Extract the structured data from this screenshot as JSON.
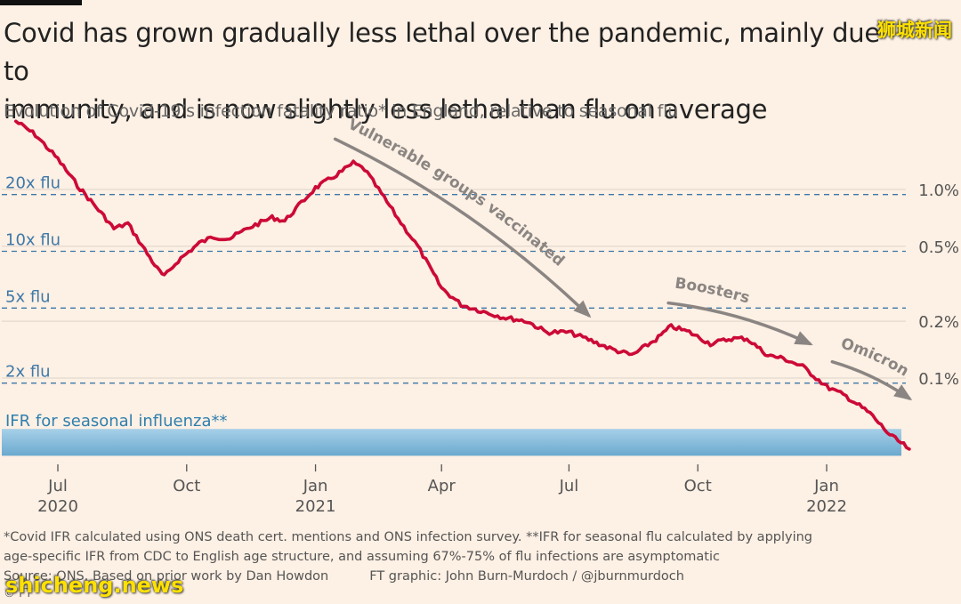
{
  "header": {
    "title_line1": "Covid has grown gradually less lethal over the pandemic, mainly due to",
    "title_line2": "immunity, and is now slightly less lethal than flu on average",
    "subtitle": "Evolution of Covid-19’s infection fatality ratio* in England, relative to seasonal flu"
  },
  "footer": {
    "note_line1": "*Covid IFR calculated using ONS death cert. mentions and ONS infection survey.  **IFR for seasonal flu calculated by applying",
    "note_line2": "age-specific IFR from CDC to English age structure, and assuming 67%-75% of flu infections are asymptomatic",
    "source": "Source: ONS. Based on prior work by Dan Howdon",
    "credit": "FT graphic: John Burn-Murdoch / @jburnmurdoch",
    "logo": "© FT"
  },
  "watermarks": {
    "top": "狮城新闻",
    "bottom": "shicheng.news"
  },
  "colors": {
    "background": "#fdf0e4",
    "line": "#cc0a37",
    "flu_band": "#7fb7d8",
    "flu_label": "#2f7fae",
    "reference": "#3d78a8",
    "arrow": "#8a8582",
    "grid": "#ddd3c9"
  },
  "chart_data": {
    "type": "line",
    "title": "Covid has grown gradually less lethal over the pandemic, mainly due to immunity, and is now slightly less lethal than flu on average",
    "subtitle": "Evolution of Covid-19’s infection fatality ratio* in England, relative to seasonal flu",
    "x_axis": {
      "range": [
        "2020-06-01",
        "2022-03-05"
      ],
      "ticks": [
        {
          "date": "2020-07-01",
          "month": "Jul",
          "year": "2020"
        },
        {
          "date": "2020-10-01",
          "month": "Oct",
          "year": ""
        },
        {
          "date": "2021-01-01",
          "month": "Jan",
          "year": "2021"
        },
        {
          "date": "2021-04-01",
          "month": "Apr",
          "year": ""
        },
        {
          "date": "2021-07-01",
          "month": "Jul",
          "year": ""
        },
        {
          "date": "2021-10-01",
          "month": "Oct",
          "year": ""
        },
        {
          "date": "2022-01-01",
          "month": "Jan",
          "year": "2022"
        }
      ]
    },
    "y_axis": {
      "scale": "log",
      "unit": "%",
      "range": [
        0.02,
        2.4
      ],
      "ticks": [
        {
          "value": 1.0,
          "label": "1.0%"
        },
        {
          "value": 0.5,
          "label": "0.5%"
        },
        {
          "value": 0.2,
          "label": "0.2%"
        },
        {
          "value": 0.1,
          "label": "0.1%"
        }
      ]
    },
    "flu_ifr": 0.047,
    "flu_band": [
      0.04,
      0.052
    ],
    "flu_band_label": "IFR for seasonal influenza**",
    "reference_lines": [
      {
        "multiple": 20,
        "label": "20x flu",
        "value": 0.94
      },
      {
        "multiple": 10,
        "label": "10x flu",
        "value": 0.47
      },
      {
        "multiple": 5,
        "label": "5x flu",
        "value": 0.235
      },
      {
        "multiple": 2,
        "label": "2x flu",
        "value": 0.094
      }
    ],
    "series": [
      {
        "name": "Covid-19 infection fatality ratio (England)",
        "points": [
          {
            "date": "2020-06-01",
            "ifr": 2.3
          },
          {
            "date": "2020-06-15",
            "ifr": 1.95
          },
          {
            "date": "2020-07-01",
            "ifr": 1.45
          },
          {
            "date": "2020-07-15",
            "ifr": 1.05
          },
          {
            "date": "2020-08-01",
            "ifr": 0.75
          },
          {
            "date": "2020-08-10",
            "ifr": 0.62
          },
          {
            "date": "2020-08-20",
            "ifr": 0.66
          },
          {
            "date": "2020-09-01",
            "ifr": 0.48
          },
          {
            "date": "2020-09-10",
            "ifr": 0.38
          },
          {
            "date": "2020-09-15",
            "ifr": 0.345
          },
          {
            "date": "2020-09-25",
            "ifr": 0.42
          },
          {
            "date": "2020-10-10",
            "ifr": 0.52
          },
          {
            "date": "2020-10-20",
            "ifr": 0.56
          },
          {
            "date": "2020-11-01",
            "ifr": 0.55
          },
          {
            "date": "2020-11-15",
            "ifr": 0.63
          },
          {
            "date": "2020-12-01",
            "ifr": 0.71
          },
          {
            "date": "2020-12-10",
            "ifr": 0.68
          },
          {
            "date": "2020-12-20",
            "ifr": 0.82
          },
          {
            "date": "2021-01-01",
            "ifr": 1.02
          },
          {
            "date": "2021-01-10",
            "ifr": 1.12
          },
          {
            "date": "2021-01-20",
            "ifr": 1.25
          },
          {
            "date": "2021-01-28",
            "ifr": 1.38
          },
          {
            "date": "2021-02-05",
            "ifr": 1.28
          },
          {
            "date": "2021-02-15",
            "ifr": 1.0
          },
          {
            "date": "2021-03-01",
            "ifr": 0.7
          },
          {
            "date": "2021-03-15",
            "ifr": 0.5
          },
          {
            "date": "2021-04-01",
            "ifr": 0.3
          },
          {
            "date": "2021-04-15",
            "ifr": 0.245
          },
          {
            "date": "2021-05-01",
            "ifr": 0.225
          },
          {
            "date": "2021-05-15",
            "ifr": 0.21
          },
          {
            "date": "2021-06-01",
            "ifr": 0.2
          },
          {
            "date": "2021-06-15",
            "ifr": 0.175
          },
          {
            "date": "2021-07-01",
            "ifr": 0.175
          },
          {
            "date": "2021-07-15",
            "ifr": 0.16
          },
          {
            "date": "2021-08-01",
            "ifr": 0.142
          },
          {
            "date": "2021-08-15",
            "ifr": 0.132
          },
          {
            "date": "2021-09-01",
            "ifr": 0.16
          },
          {
            "date": "2021-09-12",
            "ifr": 0.188
          },
          {
            "date": "2021-09-25",
            "ifr": 0.175
          },
          {
            "date": "2021-10-10",
            "ifr": 0.152
          },
          {
            "date": "2021-10-25",
            "ifr": 0.162
          },
          {
            "date": "2021-11-05",
            "ifr": 0.162
          },
          {
            "date": "2021-11-20",
            "ifr": 0.132
          },
          {
            "date": "2021-12-01",
            "ifr": 0.127
          },
          {
            "date": "2021-12-15",
            "ifr": 0.115
          },
          {
            "date": "2022-01-01",
            "ifr": 0.09
          },
          {
            "date": "2022-01-15",
            "ifr": 0.08
          },
          {
            "date": "2022-02-01",
            "ifr": 0.065
          },
          {
            "date": "2022-02-15",
            "ifr": 0.05
          },
          {
            "date": "2022-03-01",
            "ifr": 0.042
          }
        ]
      }
    ],
    "annotations": [
      {
        "text": "Vulnerable groups vaccinated",
        "from": {
          "date": "2021-01-15",
          "ifr": 1.85
        },
        "to": {
          "date": "2021-07-15",
          "ifr": 0.215
        }
      },
      {
        "text": "Boosters",
        "from": {
          "date": "2021-09-10",
          "ifr": 0.25
        },
        "to": {
          "date": "2021-12-20",
          "ifr": 0.152
        }
      },
      {
        "text": "Omicron",
        "from": {
          "date": "2022-01-05",
          "ifr": 0.122
        },
        "to": {
          "date": "2022-03-01",
          "ifr": 0.078
        }
      }
    ]
  }
}
